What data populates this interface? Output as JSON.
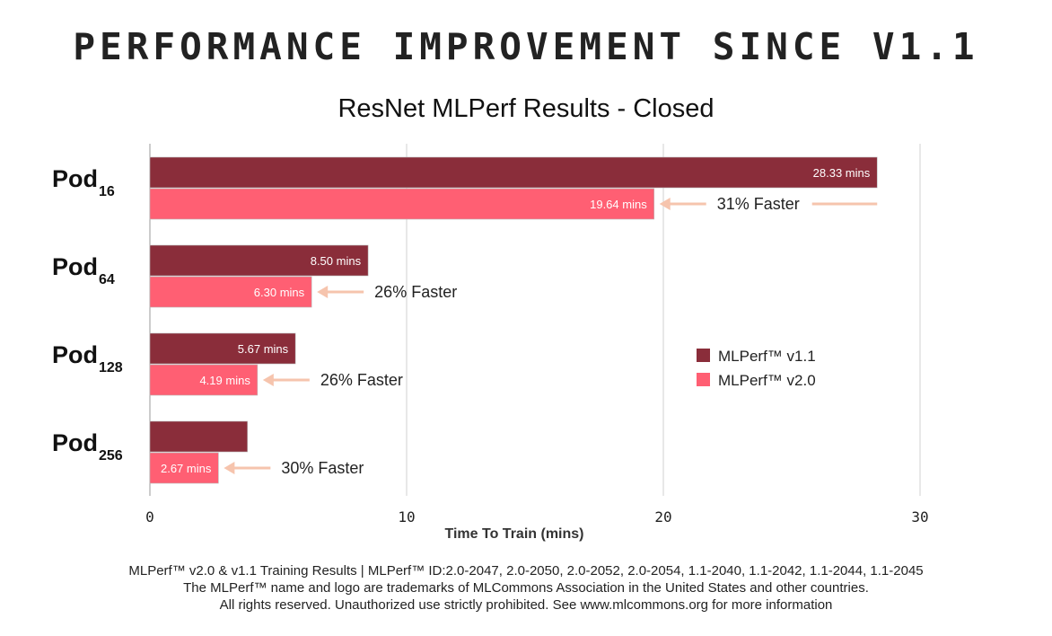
{
  "header": {
    "title": "PERFORMANCE IMPROVEMENT SINCE V1.1"
  },
  "colors": {
    "v11": "#8a2d3a",
    "v20": "#ff5f73",
    "arrow": "#f6c4ad",
    "grid": "#d0d0d0"
  },
  "chart_data": {
    "type": "bar",
    "orientation": "horizontal",
    "title": "ResNet MLPerf Results - Closed",
    "xlabel": "Time To Train (mins)",
    "xlim": [
      0,
      30
    ],
    "xticks": [
      0,
      10,
      20,
      30
    ],
    "grid": true,
    "legend_position": "right",
    "categories": [
      {
        "base": "Pod",
        "sub": "16"
      },
      {
        "base": "Pod",
        "sub": "64"
      },
      {
        "base": "Pod",
        "sub": "128"
      },
      {
        "base": "Pod",
        "sub": "256"
      }
    ],
    "series": [
      {
        "name": "MLPerf™ v1.1",
        "values": [
          28.33,
          8.5,
          5.67,
          3.8
        ],
        "labels": [
          "28.33 mins",
          "8.50 mins",
          "5.67 mins",
          ""
        ]
      },
      {
        "name": "MLPerf™ v2.0",
        "values": [
          19.64,
          6.3,
          4.19,
          2.67
        ],
        "labels": [
          "19.64 mins",
          "6.30 mins",
          "4.19 mins",
          "2.67 mins"
        ]
      }
    ],
    "annotations": [
      "31% Faster",
      "26% Faster",
      "26% Faster",
      "30% Faster"
    ]
  },
  "footnote": {
    "line1": "MLPerf™ v2.0 & v1.1 Training Results | MLPerf™ ID:2.0-2047, 2.0-2050, 2.0-2052, 2.0-2054, 1.1-2040, 1.1-2042, 1.1-2044, 1.1-2045",
    "line2": "The MLPerf™ name and logo are trademarks of MLCommons Association in the United States and other countries.",
    "line3": "All rights reserved. Unauthorized use strictly prohibited. See www.mlcommons.org for more information"
  }
}
